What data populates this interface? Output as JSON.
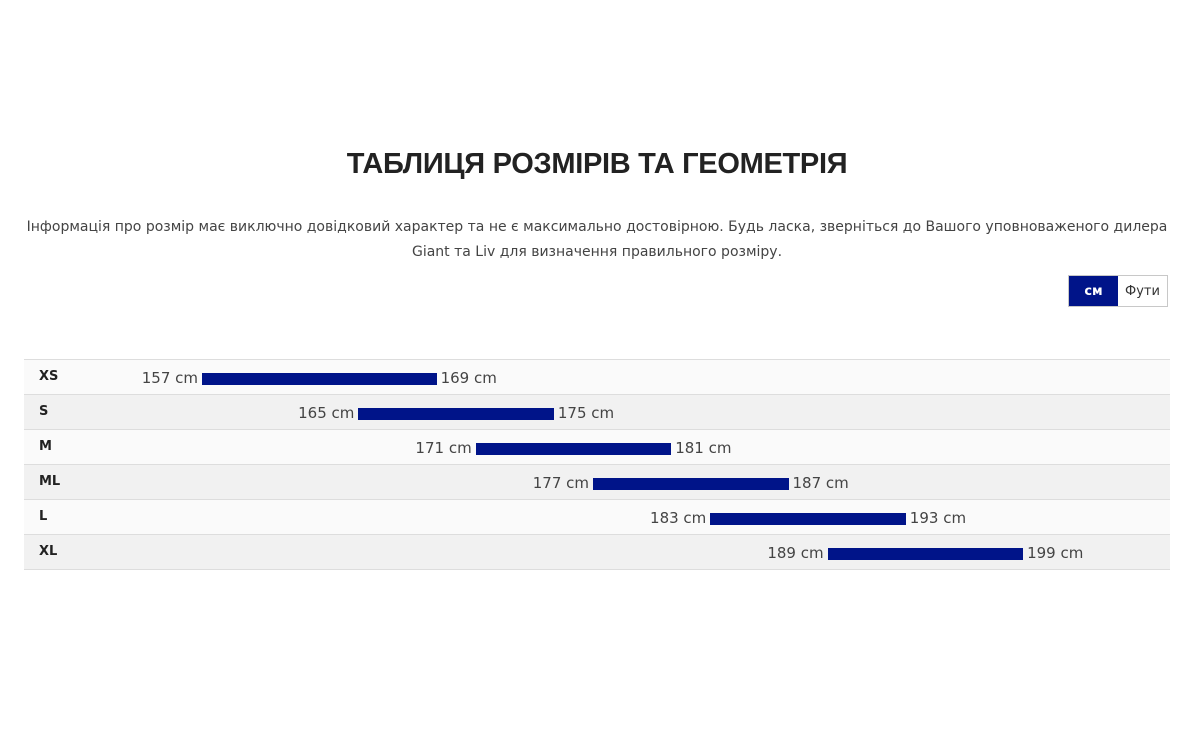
{
  "header": {
    "title": "ТАБЛИЦЯ РОЗМІРІВ ТА ГЕОМЕТРІЯ",
    "disclaimer": "Інформація про розмір має виключно довідковий характер та не є максимально достовірною. Будь ласка, зверніться до Вашого уповноваженого дилера Giant та Liv для визначення правильного розміру."
  },
  "unit_toggle": {
    "options": [
      {
        "label": "см",
        "active": true
      },
      {
        "label": "Фути",
        "active": false
      }
    ]
  },
  "colors": {
    "accent": "#001489",
    "row_light": "#fafafa",
    "row_dark": "#f1f1f1"
  },
  "sizes": [
    {
      "size": "XS",
      "min_label": "157 cm",
      "max_label": "169 cm",
      "min": 157,
      "max": 169
    },
    {
      "size": "S",
      "min_label": "165 cm",
      "max_label": "175 cm",
      "min": 165,
      "max": 175
    },
    {
      "size": "M",
      "min_label": "171 cm",
      "max_label": "181 cm",
      "min": 171,
      "max": 181
    },
    {
      "size": "ML",
      "min_label": "177 cm",
      "max_label": "187 cm",
      "min": 177,
      "max": 187
    },
    {
      "size": "L",
      "min_label": "183 cm",
      "max_label": "193 cm",
      "min": 183,
      "max": 193
    },
    {
      "size": "XL",
      "min_label": "189 cm",
      "max_label": "199 cm",
      "min": 189,
      "max": 199
    }
  ]
}
